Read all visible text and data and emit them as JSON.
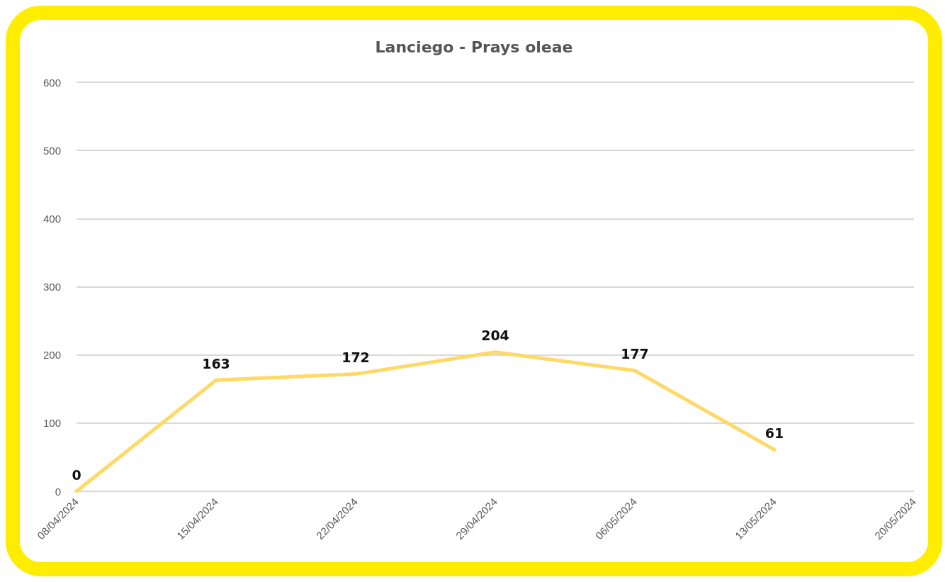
{
  "chart_data": {
    "type": "line",
    "title": "Lanciego - Prays oleae",
    "categories": [
      "08/04/2024",
      "15/04/2024",
      "22/04/2024",
      "29/04/2024",
      "06/05/2024",
      "13/05/2024",
      "20/05/2024"
    ],
    "values": [
      0,
      163,
      172,
      204,
      177,
      61,
      null
    ],
    "color": "#ffd966",
    "ylim": [
      0,
      600
    ],
    "yticks": [
      0,
      100,
      200,
      300,
      400,
      500,
      600
    ],
    "grid": "y",
    "marker": "none",
    "line_style": "solid",
    "data_labels": true
  }
}
